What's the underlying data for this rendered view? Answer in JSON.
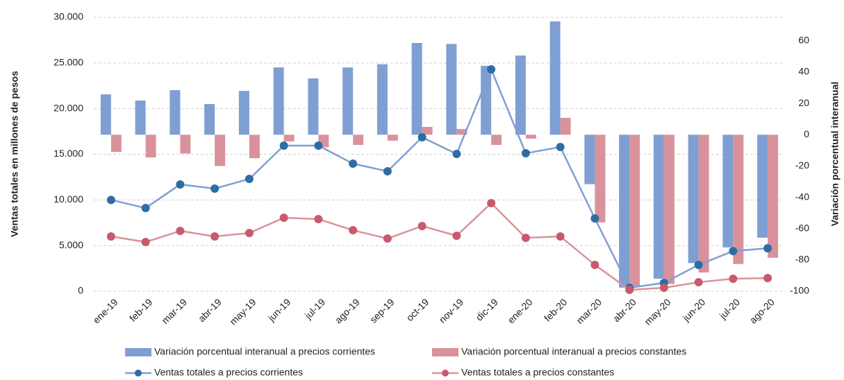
{
  "chart_data": {
    "type": "combo",
    "y_label": "Ventas totales en millones de pesos",
    "y2_label": "Variación porcentual interanual",
    "categories": [
      "ene-19",
      "feb-19",
      "mar-19",
      "abr-19",
      "may-19",
      "jun-19",
      "jul-19",
      "ago-19",
      "sep-19",
      "oct-19",
      "nov-19",
      "dic-19",
      "ene-20",
      "feb-20",
      "mar-20",
      "abr-20",
      "may-20",
      "jun-20",
      "jul-20",
      "ago-20"
    ],
    "ylim": [
      0,
      30000
    ],
    "yticks": [
      0,
      {
        "value": 5000,
        "label": "5.000"
      },
      {
        "value": 10000,
        "label": "10.000"
      },
      {
        "value": 15000,
        "label": "15.000"
      },
      {
        "value": 20000,
        "label": "20.000"
      },
      {
        "value": 25000,
        "label": "25.000"
      },
      {
        "value": 30000,
        "label": "30.000"
      }
    ],
    "y2lim": [
      -100,
      75
    ],
    "y2ticks": [
      -100,
      -80,
      -60,
      -40,
      -20,
      0,
      20,
      40,
      60
    ],
    "grid": true,
    "series": [
      {
        "name": "Variación porcentual interanual a precios corrientes",
        "type": "bar",
        "axis": "y2",
        "color": "#7f9fd3",
        "values": [
          25.8,
          21.8,
          28.5,
          19.6,
          28,
          43,
          36,
          43,
          45,
          58.6,
          58,
          44,
          50.6,
          72.4,
          -31.6,
          -97.7,
          -92,
          -82,
          -72,
          -65.8
        ]
      },
      {
        "name": "Variación porcentual interanual a precios constantes",
        "type": "bar",
        "axis": "y2",
        "color": "#d9929b",
        "values": [
          -11,
          -14.5,
          -12,
          -20,
          -15,
          -4.3,
          -8,
          -6.5,
          -3.8,
          5,
          3.7,
          -6.5,
          -2.5,
          10.8,
          -56,
          -96.7,
          -95.4,
          -88,
          -82.6,
          -78.6
        ]
      },
      {
        "name": "Ventas totales a precios corrientes",
        "type": "line",
        "color": "#7f9fd3",
        "marker_color": "#2e6da4",
        "values": [
          10000,
          9110,
          11700,
          11240,
          12300,
          15950,
          15950,
          13975,
          13140,
          16860,
          15040,
          24300,
          15110,
          15800,
          7975,
          380,
          910,
          2890,
          4400,
          4710
        ]
      },
      {
        "name": "Ventas totales a precios constantes",
        "type": "line",
        "color": "#d9929b",
        "marker_color": "#c85a6e",
        "values": [
          6000,
          5390,
          6610,
          6000,
          6380,
          8050,
          7900,
          6680,
          5770,
          7140,
          6080,
          9650,
          5850,
          6000,
          2890,
          150,
          380,
          990,
          1370,
          1440
        ]
      }
    ]
  }
}
